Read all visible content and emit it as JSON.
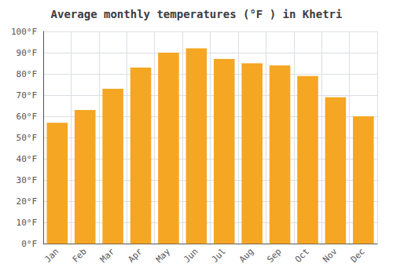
{
  "chart_data": {
    "type": "bar",
    "title": "Average monthly temperatures (°F ) in Khetri",
    "categories": [
      "Jan",
      "Feb",
      "Mar",
      "Apr",
      "May",
      "Jun",
      "Jul",
      "Aug",
      "Sep",
      "Oct",
      "Nov",
      "Dec"
    ],
    "values": [
      57,
      63,
      73,
      83,
      90,
      92,
      87,
      85,
      84,
      79,
      69,
      60
    ],
    "color": "#F5A623",
    "ylim": [
      0,
      100
    ],
    "yticks": [
      {
        "value": 0,
        "label": "0°F"
      },
      {
        "value": 10,
        "label": "10°F"
      },
      {
        "value": 20,
        "label": "20°F"
      },
      {
        "value": 30,
        "label": "30°F"
      },
      {
        "value": 40,
        "label": "40°F"
      },
      {
        "value": 50,
        "label": "50°F"
      },
      {
        "value": 60,
        "label": "60°F"
      },
      {
        "value": 70,
        "label": "70°F"
      },
      {
        "value": 80,
        "label": "80°F"
      },
      {
        "value": 90,
        "label": "90°F"
      },
      {
        "value": 100,
        "label": "100°F"
      }
    ],
    "grid": true
  }
}
